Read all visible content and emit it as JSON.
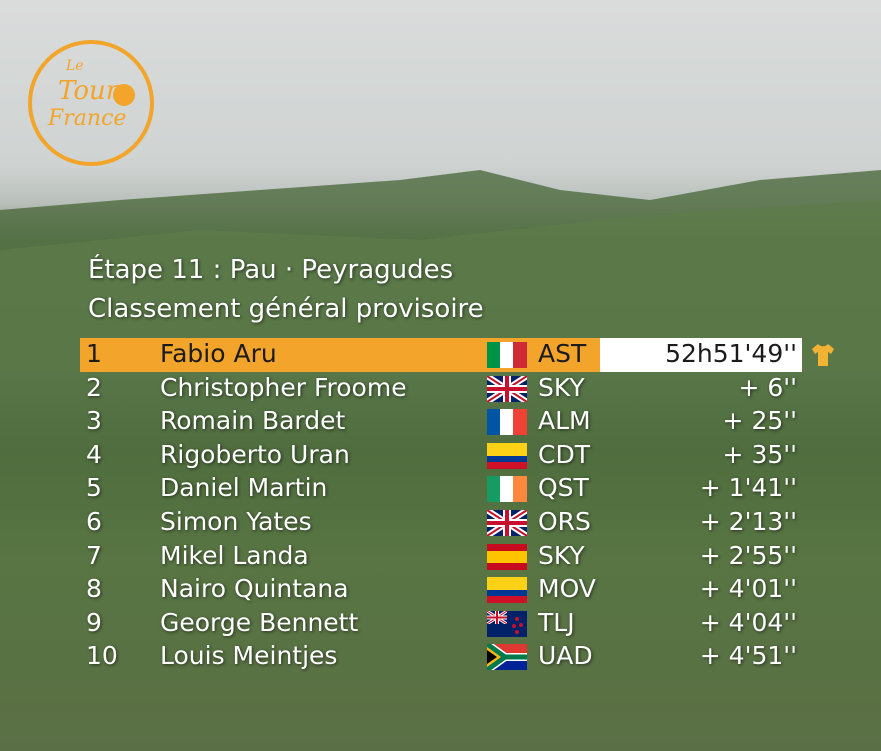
{
  "logo": [
    "Le",
    "Tour",
    "France"
  ],
  "header": {
    "title": "Étape 11 : Pau · Peyragudes",
    "subtitle": "Classement général provisoire"
  },
  "table": {
    "rows": [
      [
        "1",
        "Fabio Aru",
        "AST",
        "52h51'49''"
      ],
      [
        "2",
        "Christopher Froome",
        "SKY",
        "+ 6''"
      ],
      [
        "3",
        "Romain Bardet",
        "ALM",
        "+ 25''"
      ],
      [
        "4",
        "Rigoberto Uran",
        "CDT",
        "+ 35''"
      ],
      [
        "5",
        "Daniel Martin",
        "QST",
        "+ 1'41''"
      ],
      [
        "6",
        "Simon Yates",
        "ORS",
        "+ 2'13''"
      ],
      [
        "7",
        "Mikel Landa",
        "SKY",
        "+ 2'55''"
      ],
      [
        "8",
        "Nairo Quintana",
        "MOV",
        "+ 4'01''"
      ],
      [
        "9",
        "George Bennett",
        "TLJ",
        "+ 4'04''"
      ],
      [
        "10",
        "Louis Meintjes",
        "UAD",
        "+ 4'51''"
      ]
    ]
  }
}
